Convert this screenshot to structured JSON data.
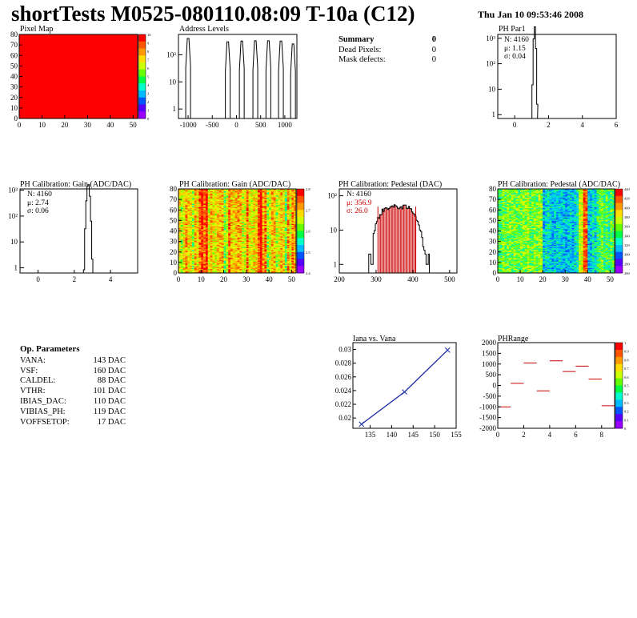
{
  "title": "shortTests M0525-080110.08:09 T-10a (C12)",
  "datestamp": "Thu Jan 10 09:53:46 2008",
  "colors": {
    "accent_red": "#ff0000",
    "hist_line": "#000000",
    "fit_line": "#1a2aa8",
    "pedestal_red": "#cc0000"
  },
  "panels": {
    "pixel_map": {
      "title": "Pixel Map",
      "chart_data": {
        "type": "heatmap",
        "x_ticks": [
          "0",
          "10",
          "20",
          "30",
          "40",
          "50"
        ],
        "y_ticks": [
          "0",
          "10",
          "20",
          "30",
          "40",
          "50",
          "60",
          "70",
          "80"
        ],
        "xlim": [
          0,
          52
        ],
        "ylim": [
          0,
          80
        ],
        "uniform_value": 10,
        "palette_ticks": [
          "10",
          "9",
          "8",
          "7",
          "6",
          "5",
          "4",
          "3",
          "2",
          "1",
          "0"
        ]
      }
    },
    "address_levels": {
      "title": "Address Levels",
      "chart_data": {
        "type": "bar",
        "log_y": true,
        "xlim": [
          -1200,
          1250
        ],
        "x_ticks": [
          "-1000",
          "-500",
          "0",
          "500",
          "1000"
        ],
        "y_ticks": [
          "1",
          "10",
          "10²"
        ],
        "peaks": [
          {
            "x": -1000,
            "y": 400
          },
          {
            "x": -180,
            "y": 300
          },
          {
            "x": 110,
            "y": 320
          },
          {
            "x": 390,
            "y": 330
          },
          {
            "x": 660,
            "y": 330
          },
          {
            "x": 920,
            "y": 320
          },
          {
            "x": 1170,
            "y": 250
          }
        ]
      }
    },
    "summary": {
      "title": "Summary",
      "total": "0",
      "rows": [
        {
          "label": "Dead Pixels:",
          "value": "0"
        },
        {
          "label": "Mask defects:",
          "value": "0"
        }
      ]
    },
    "ph_par1": {
      "title": "PH Par1",
      "stats": [
        "N: 4160",
        "μ: 1.15",
        "σ: 0.04"
      ],
      "chart_data": {
        "type": "bar",
        "log_y": true,
        "xlim": [
          -1,
          6
        ],
        "x_ticks": [
          "0",
          "2",
          "4",
          "6"
        ],
        "y_ticks": [
          "1",
          "10",
          "10²",
          "10³"
        ],
        "mean": 1.15,
        "sigma": 0.04,
        "entries": 4160
      }
    },
    "gain_hist": {
      "title": "PH Calibration: Gain (ADC/DAC)",
      "stats": [
        "N: 4160",
        "μ: 2.74",
        "σ: 0.06"
      ],
      "chart_data": {
        "type": "bar",
        "log_y": true,
        "xlim": [
          -1,
          5.5
        ],
        "x_ticks": [
          "0",
          "2",
          "4"
        ],
        "y_ticks": [
          "1",
          "10",
          "10²",
          "10³"
        ],
        "mean": 2.74,
        "sigma": 0.06,
        "entries": 4160
      }
    },
    "gain_map": {
      "title": "PH Calibration: Gain (ADC/DAC)",
      "chart_data": {
        "type": "heatmap",
        "xlim": [
          0,
          52
        ],
        "ylim": [
          0,
          80
        ],
        "x_ticks": [
          "0",
          "10",
          "20",
          "30",
          "40",
          "50"
        ],
        "y_ticks": [
          "0",
          "10",
          "20",
          "30",
          "40",
          "50",
          "60",
          "70",
          "80"
        ],
        "palette_ticks": [
          "2.8",
          "2.7",
          "2.6",
          "2.5",
          "2.4"
        ]
      }
    },
    "pedestal_hist": {
      "title": "PH Calibration: Pedestal (DAC)",
      "stats": [
        "N: 4160",
        "μ: 356.9",
        "σ: 26.0"
      ],
      "chart_data": {
        "type": "bar",
        "log_y": true,
        "xlim": [
          200,
          520
        ],
        "x_ticks": [
          "200",
          "300",
          "400",
          "500"
        ],
        "y_ticks": [
          "1",
          "10",
          "10²"
        ],
        "mean": 356.9,
        "sigma": 26.0,
        "entries": 4160,
        "cut_lines": [
          305,
          408
        ]
      }
    },
    "pedestal_map": {
      "title": "PH Calibration: Pedestal (ADC/DAC)",
      "chart_data": {
        "type": "heatmap",
        "xlim": [
          0,
          52
        ],
        "ylim": [
          0,
          80
        ],
        "x_ticks": [
          "0",
          "10",
          "20",
          "30",
          "40",
          "50"
        ],
        "y_ticks": [
          "0",
          "10",
          "20",
          "30",
          "40",
          "50",
          "60",
          "70",
          "80"
        ],
        "palette_ticks": [
          "440",
          "420",
          "400",
          "380",
          "360",
          "340",
          "320",
          "300",
          "280",
          "260"
        ]
      }
    },
    "op_params": {
      "title": "Op. Parameters",
      "rows": [
        {
          "name": "VANA:",
          "value": "143 DAC"
        },
        {
          "name": "VSF:",
          "value": "160 DAC"
        },
        {
          "name": "CALDEL:",
          "value": "88 DAC"
        },
        {
          "name": "VTHR:",
          "value": "101 DAC"
        },
        {
          "name": "IBIAS_DAC:",
          "value": "110 DAC"
        },
        {
          "name": "VIBIAS_PH:",
          "value": "119 DAC"
        },
        {
          "name": "VOFFSETOP:",
          "value": "17 DAC"
        }
      ]
    },
    "iana_vana": {
      "title": "Iana vs. Vana",
      "chart_data": {
        "type": "line",
        "xlim": [
          131,
          155
        ],
        "ylim": [
          0.0185,
          0.031
        ],
        "x_ticks": [
          "135",
          "140",
          "145",
          "150",
          "155"
        ],
        "y_ticks": [
          "0.02",
          "0.022",
          "0.024",
          "0.026",
          "0.028",
          "0.03"
        ],
        "x": [
          133,
          143,
          153
        ],
        "y": [
          0.0191,
          0.0238,
          0.0299
        ]
      }
    },
    "ph_range": {
      "title": "PHRange",
      "chart_data": {
        "type": "scatter",
        "xlim": [
          0,
          9
        ],
        "ylim": [
          -2000,
          2000
        ],
        "x_ticks": [
          "0",
          "2",
          "4",
          "6",
          "8"
        ],
        "y_ticks": [
          "2000",
          "1500",
          "1000",
          "500",
          "0",
          "-500",
          "-1000",
          "-1500",
          "-2000"
        ],
        "x": [
          0.5,
          1.5,
          2.5,
          3.5,
          4.5,
          5.5,
          6.5,
          7.5,
          8.5
        ],
        "y": [
          -1000,
          100,
          1050,
          -250,
          1150,
          650,
          900,
          300,
          -950
        ],
        "palette_ticks": [
          "1",
          "0.9",
          "0.8",
          "0.7",
          "0.6",
          "0.5",
          "0.4",
          "0.3",
          "0.2",
          "0.1",
          "0"
        ]
      }
    }
  }
}
